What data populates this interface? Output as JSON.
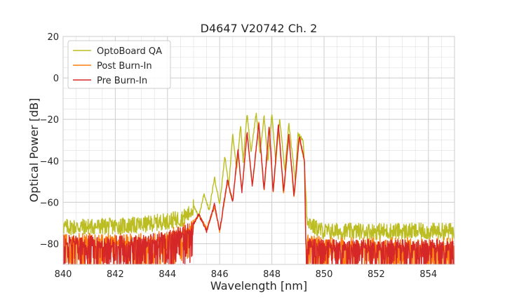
{
  "chart_data": {
    "type": "line",
    "title": "D4647 V20742 Ch. 2",
    "xlabel": "Wavelength [nm]",
    "ylabel": "Optical Power [dB]",
    "xlim": [
      840,
      855
    ],
    "ylim": [
      -90,
      20
    ],
    "xticks": [
      840,
      842,
      844,
      846,
      848,
      850,
      852,
      854
    ],
    "yticks": [
      20,
      0,
      -20,
      -40,
      -60,
      -80
    ],
    "grid": true,
    "legend_position": "top-left",
    "series": [
      {
        "name": "OptoBoard QA",
        "color": "#bcbd22",
        "noise_floor": -72,
        "points": [
          [
            840,
            -72
          ],
          [
            842,
            -71.5
          ],
          [
            843,
            -71
          ],
          [
            844,
            -69
          ],
          [
            844.5,
            -68
          ],
          [
            844.8,
            -66
          ],
          [
            845.0,
            -62
          ],
          [
            845.2,
            -67
          ],
          [
            845.4,
            -56
          ],
          [
            845.6,
            -64
          ],
          [
            845.8,
            -48
          ],
          [
            846.0,
            -61
          ],
          [
            846.2,
            -38
          ],
          [
            846.35,
            -52
          ],
          [
            846.5,
            -27
          ],
          [
            846.65,
            -44
          ],
          [
            846.8,
            -23
          ],
          [
            846.9,
            -40
          ],
          [
            847.05,
            -17
          ],
          [
            847.2,
            -36
          ],
          [
            847.4,
            -17
          ],
          [
            847.55,
            -37
          ],
          [
            847.7,
            -18
          ],
          [
            847.85,
            -40
          ],
          [
            848.0,
            -17
          ],
          [
            848.15,
            -41
          ],
          [
            848.3,
            -20
          ],
          [
            848.5,
            -45
          ],
          [
            848.65,
            -22
          ],
          [
            848.9,
            -50
          ],
          [
            849.0,
            -27
          ],
          [
            849.2,
            -30
          ],
          [
            849.35,
            -68
          ],
          [
            849.6,
            -72
          ],
          [
            850,
            -74
          ],
          [
            852,
            -74
          ],
          [
            855,
            -74
          ]
        ]
      },
      {
        "name": "Post Burn-In",
        "color": "#ff7f0e",
        "noise_floor": -78,
        "points": [
          [
            840,
            -78
          ],
          [
            843,
            -78
          ],
          [
            844,
            -76
          ],
          [
            844.6,
            -73
          ],
          [
            844.9,
            -72
          ],
          [
            845.2,
            -66
          ],
          [
            845.5,
            -73
          ],
          [
            845.8,
            -62
          ],
          [
            846.0,
            -74
          ],
          [
            846.3,
            -50
          ],
          [
            846.5,
            -60
          ],
          [
            846.7,
            -35
          ],
          [
            846.85,
            -55
          ],
          [
            847.05,
            -27
          ],
          [
            847.25,
            -52
          ],
          [
            847.5,
            -22
          ],
          [
            847.7,
            -55
          ],
          [
            847.9,
            -24
          ],
          [
            848.05,
            -56
          ],
          [
            848.25,
            -23
          ],
          [
            848.45,
            -56
          ],
          [
            848.65,
            -28
          ],
          [
            848.85,
            -58
          ],
          [
            849.05,
            -29
          ],
          [
            849.25,
            -40
          ],
          [
            849.3,
            -78
          ],
          [
            850,
            -80
          ],
          [
            852,
            -80
          ],
          [
            855,
            -80
          ]
        ]
      },
      {
        "name": "Pre Burn-In",
        "color": "#d62728",
        "noise_floor": -79,
        "points": [
          [
            840,
            -79
          ],
          [
            843,
            -79
          ],
          [
            844,
            -77
          ],
          [
            844.6,
            -74
          ],
          [
            844.9,
            -73
          ],
          [
            845.2,
            -66
          ],
          [
            845.5,
            -74
          ],
          [
            845.8,
            -61
          ],
          [
            846.0,
            -74
          ],
          [
            846.3,
            -49
          ],
          [
            846.5,
            -60
          ],
          [
            846.7,
            -34
          ],
          [
            846.85,
            -55
          ],
          [
            847.05,
            -26
          ],
          [
            847.25,
            -52
          ],
          [
            847.5,
            -22
          ],
          [
            847.7,
            -54
          ],
          [
            847.9,
            -23
          ],
          [
            848.05,
            -55
          ],
          [
            848.25,
            -22
          ],
          [
            848.45,
            -55
          ],
          [
            848.65,
            -27
          ],
          [
            848.85,
            -57
          ],
          [
            849.05,
            -28
          ],
          [
            849.25,
            -40
          ],
          [
            849.3,
            -79
          ],
          [
            850,
            -81
          ],
          [
            852,
            -81
          ],
          [
            855,
            -81
          ]
        ]
      }
    ]
  }
}
